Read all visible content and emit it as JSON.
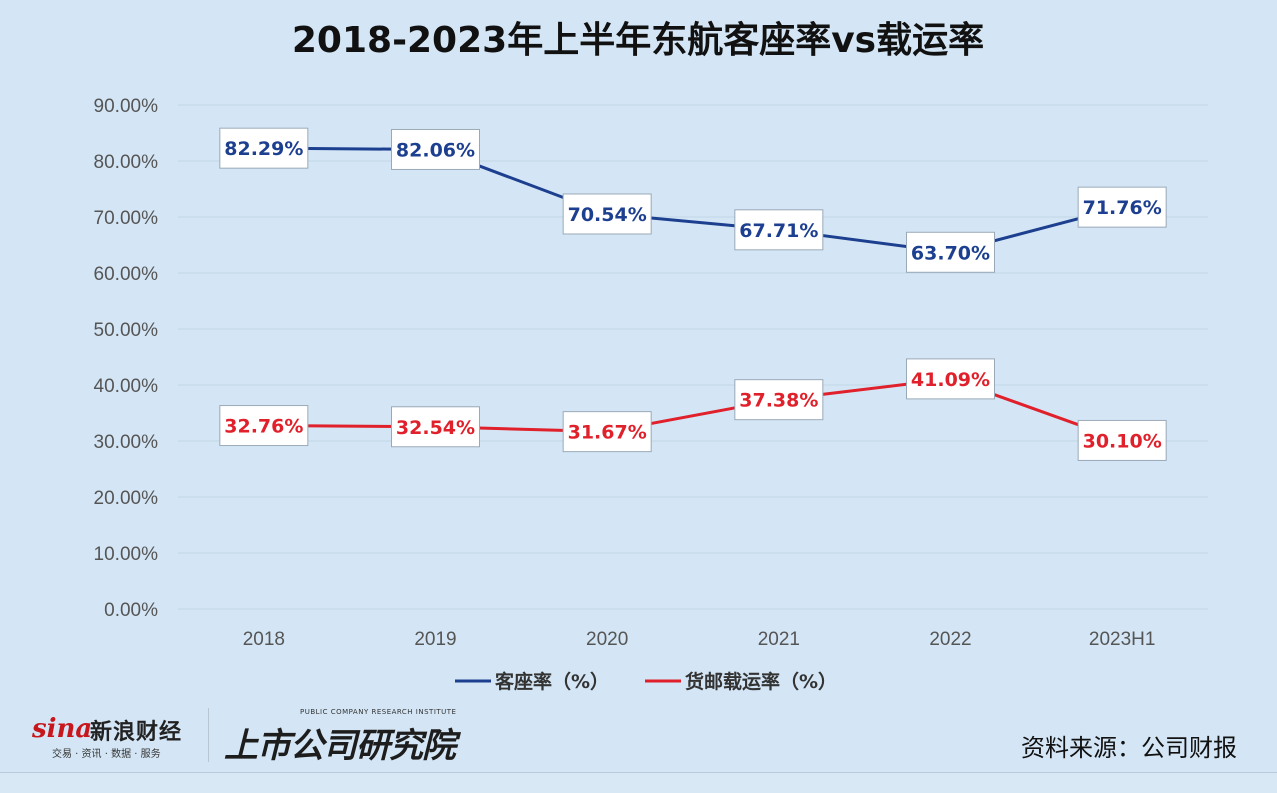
{
  "chart_data": {
    "type": "line",
    "title": "2018-2023年上半年东航客座率vs载运率",
    "categories": [
      "2018",
      "2019",
      "2020",
      "2021",
      "2022",
      "2023H1"
    ],
    "yticks": [
      "0.00%",
      "10.00%",
      "20.00%",
      "30.00%",
      "40.00%",
      "50.00%",
      "60.00%",
      "70.00%",
      "80.00%",
      "90.00%"
    ],
    "ylim": [
      0,
      90
    ],
    "grid": true,
    "legend_position": "bottom",
    "series": [
      {
        "name": "客座率（%）",
        "color": "#1c3f8f",
        "values": [
          82.29,
          82.06,
          70.54,
          67.71,
          63.7,
          71.76
        ],
        "labels": [
          "82.29%",
          "82.06%",
          "70.54%",
          "67.71%",
          "63.70%",
          "71.76%"
        ]
      },
      {
        "name": "货邮载运率（%）",
        "color": "#e0202a",
        "values": [
          32.76,
          32.54,
          31.67,
          37.38,
          41.09,
          30.1
        ],
        "labels": [
          "32.76%",
          "32.54%",
          "31.67%",
          "37.38%",
          "41.09%",
          "30.10%"
        ]
      }
    ]
  },
  "footer": {
    "sina_word": "sina",
    "sina_brand": "新浪财经",
    "sina_sub": "交易 · 资讯 · 数据 · 服务",
    "institute_name": "上市公司研究院",
    "institute_en": "PUBLIC COMPANY RESEARCH INSTITUTE",
    "source": "资料来源：公司财报"
  }
}
